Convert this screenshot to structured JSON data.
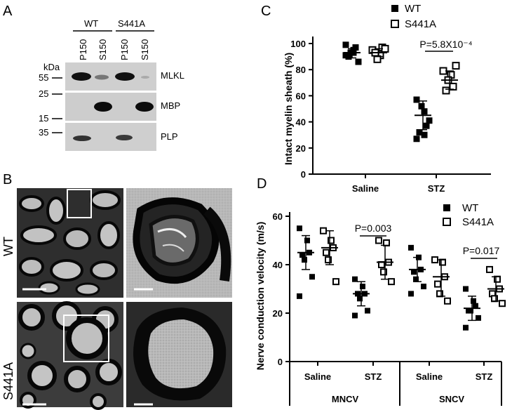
{
  "panels": {
    "a": "A",
    "b": "B",
    "c": "C",
    "d": "D"
  },
  "blot": {
    "groups": [
      "WT",
      "S441A"
    ],
    "lanes": [
      "P150",
      "S150",
      "P150",
      "S150"
    ],
    "kda_label": "kDa",
    "markers": [
      "55",
      "25",
      "15",
      "35"
    ],
    "bands": [
      "MLKL",
      "MBP",
      "PLP"
    ]
  },
  "micro": {
    "rows": [
      "WT",
      "S441A"
    ]
  },
  "colors": {
    "wt": "#000000",
    "s441a": "#000000",
    "tem_bg": "#3a3a3a"
  },
  "chart_data": [
    {
      "type": "scatter",
      "panel": "C",
      "ylabel": "Intact myelin sheath (%)",
      "ylim": [
        0,
        100
      ],
      "yticks": [
        0,
        20,
        40,
        60,
        80,
        100
      ],
      "categories": [
        "Saline",
        "STZ"
      ],
      "legend": [
        "WT",
        "S441A"
      ],
      "legend_position": "top-right",
      "series": [
        {
          "name": "WT",
          "marker": "filled-square",
          "values": [
            [
              91,
              95,
              97,
              90,
              93,
              86,
              99,
              93
            ],
            [
              57,
              48,
              37,
              32,
              52,
              41,
              27,
              30
            ]
          ],
          "mean": [
            93,
            45
          ],
          "sd": [
            [
              89,
              96
            ],
            [
              34,
              56
            ]
          ]
        },
        {
          "name": "S441A",
          "marker": "open-square",
          "values": [
            [
              95,
              91,
              97,
              93,
              88,
              96
            ],
            [
              79,
              76,
              67,
              64,
              72,
              83
            ]
          ],
          "mean": [
            93,
            72
          ],
          "sd": [
            [
              90,
              96
            ],
            [
              65,
              79
            ]
          ]
        }
      ],
      "annotations": [
        {
          "text": "P=5.8X10⁻⁴",
          "category": "STZ"
        }
      ]
    },
    {
      "type": "scatter",
      "panel": "D",
      "ylabel": "Nerve conduction velocity (m/s)",
      "ylim": [
        0,
        60
      ],
      "yticks": [
        0,
        20,
        40,
        60
      ],
      "groups": [
        {
          "label": "MNCV",
          "categories": [
            "Saline",
            "STZ"
          ]
        },
        {
          "label": "SNCV",
          "categories": [
            "Saline",
            "STZ"
          ]
        }
      ],
      "legend": [
        "WT",
        "S441A"
      ],
      "legend_position": "top-right",
      "series": [
        {
          "name": "WT",
          "marker": "filled-square",
          "values": [
            [
              55,
              50,
              45,
              44,
              42,
              35,
              27
            ],
            [
              34,
              31,
              28,
              28,
              26,
              21,
              19
            ],
            [
              47,
              43,
              38,
              37,
              34,
              31,
              28
            ],
            [
              30,
              25,
              23,
              21,
              21,
              18,
              14
            ]
          ],
          "mean": [
            45,
            28,
            38,
            22
          ],
          "sd": [
            [
              38,
              52
            ],
            [
              23,
              33
            ],
            [
              33,
              43
            ],
            [
              17,
              27
            ]
          ]
        },
        {
          "name": "S441A",
          "marker": "open-square",
          "values": [
            [
              54,
              50,
              47,
              45,
              42,
              33
            ],
            [
              50,
              49,
              41,
              40,
              37,
              33
            ],
            [
              42,
              41,
              35,
              32,
              28,
              25
            ],
            [
              38,
              34,
              30,
              28,
              26,
              24
            ]
          ],
          "mean": [
            47,
            41,
            35,
            30
          ],
          "sd": [
            [
              40,
              54
            ],
            [
              34,
              48
            ],
            [
              27,
              42
            ],
            [
              25,
              35
            ]
          ]
        }
      ],
      "annotations": [
        {
          "text": "P=0.003",
          "group": "MNCV",
          "category": "STZ"
        },
        {
          "text": "P=0.017",
          "group": "SNCV",
          "category": "STZ"
        }
      ]
    }
  ]
}
